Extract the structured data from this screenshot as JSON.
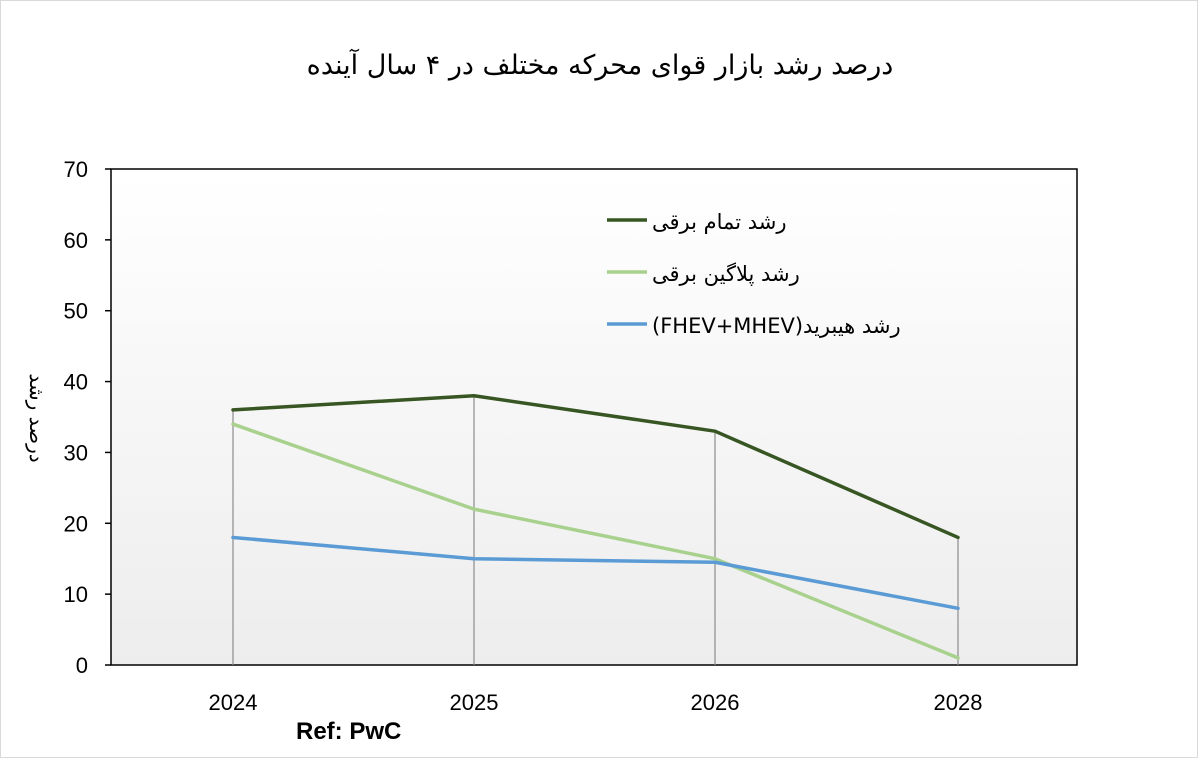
{
  "chart_data": {
    "type": "line",
    "title": "درصد رشد بازار قوای محرکه مختلف در ۴ سال آینده",
    "xlabel": "",
    "ylabel": "درصد رشد",
    "categories": [
      "2024",
      "2025",
      "2026",
      "2028"
    ],
    "ylim": [
      0,
      70
    ],
    "yticks": [
      0,
      10,
      20,
      30,
      40,
      50,
      60,
      70
    ],
    "grid": false,
    "drop_lines": true,
    "legend_position": "upper right inside plot",
    "series": [
      {
        "name": "رشد تمام برقی",
        "color": "#375623",
        "values": [
          36,
          38,
          33,
          18
        ]
      },
      {
        "name": "رشد پلاگین برقی",
        "color": "#a9d18e",
        "values": [
          34,
          22,
          15,
          1
        ]
      },
      {
        "name": "رشد هیبرید(FHEV+MHEV)",
        "color": "#5b9bd5",
        "values": [
          18,
          15,
          14.5,
          8
        ]
      }
    ],
    "annotations": [
      "Ref: PwC"
    ]
  },
  "title": "درصد رشد بازار قوای محرکه مختلف در ۴ سال آینده",
  "ylabel": "درصد رشد",
  "yticks": [
    "0",
    "10",
    "20",
    "30",
    "40",
    "50",
    "60",
    "70"
  ],
  "xticks": [
    "2024",
    "2025",
    "2026",
    "2028"
  ],
  "legend": [
    {
      "label": "رشد تمام برقی",
      "color": "#375623"
    },
    {
      "label": "رشد پلاگین برقی",
      "color": "#a9d18e"
    },
    {
      "label": "(FHEV+MHEV)رشد هیبرید",
      "color": "#5b9bd5"
    }
  ],
  "ref": "Ref: PwC"
}
